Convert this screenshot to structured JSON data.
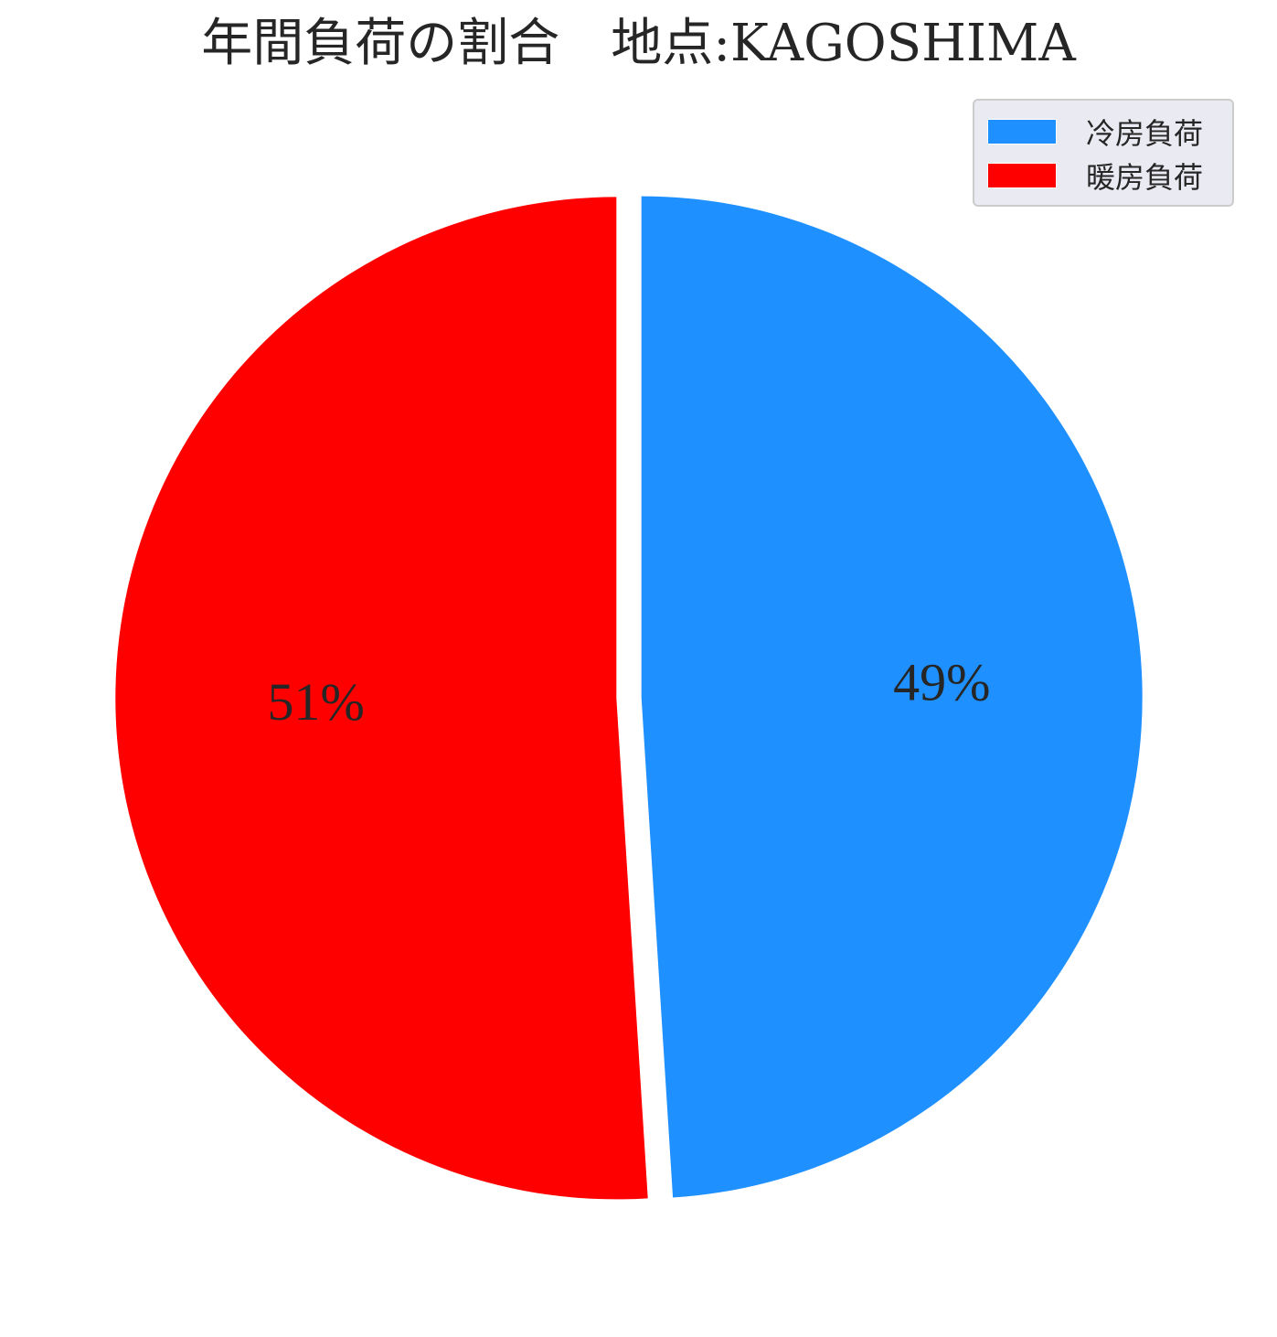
{
  "chart_data": {
    "type": "pie",
    "title": "年間負荷の割合　地点:KAGOSHIMA",
    "start_angle_deg": 90,
    "direction": "clockwise",
    "explode": [
      0.025,
      0.025
    ],
    "slices": [
      {
        "name": "冷房負荷",
        "value": 49,
        "label": "49%",
        "color": "#1e90ff"
      },
      {
        "name": "暖房負荷",
        "value": 51,
        "label": "51%",
        "color": "#ff0000"
      }
    ],
    "legend": {
      "placement": "top-right",
      "entries": [
        "冷房負荷",
        "暖房負荷"
      ]
    }
  }
}
